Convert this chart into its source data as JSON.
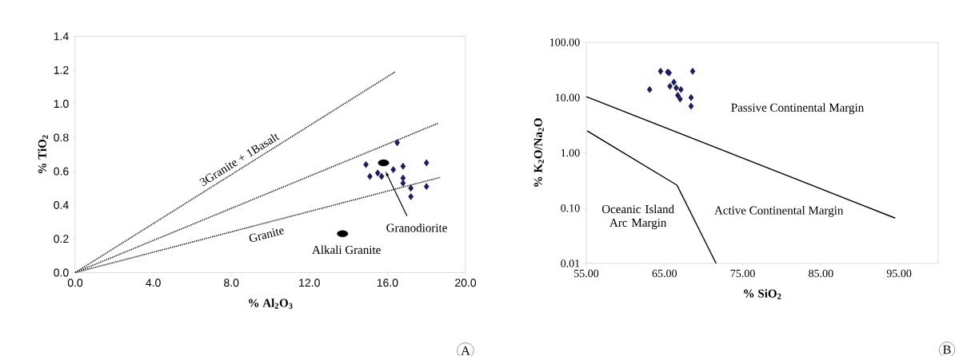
{
  "chart_data": [
    {
      "type": "scatter",
      "xlabel": "% Al$_{2}$O$_{3}$",
      "ylabel": "% TiO$_{2}$",
      "xlim": [
        0,
        20
      ],
      "ylim": [
        0,
        1.4
      ],
      "xticks": [
        {
          "value": 0,
          "label": "0.0"
        },
        {
          "value": 4,
          "label": "4.0"
        },
        {
          "value": 8,
          "label": "8.0"
        },
        {
          "value": 12,
          "label": "12.0"
        },
        {
          "value": 16,
          "label": "16.0"
        },
        {
          "value": 20,
          "label": "20.0"
        }
      ],
      "yticks": [
        {
          "value": 0,
          "label": "0.0"
        },
        {
          "value": 0.2,
          "label": "0.2"
        },
        {
          "value": 0.4,
          "label": "0.4"
        },
        {
          "value": 0.6,
          "label": "0.6"
        },
        {
          "value": 0.8,
          "label": "0.8"
        },
        {
          "value": 1.0,
          "label": "1.0"
        },
        {
          "value": 1.2,
          "label": "1.2"
        },
        {
          "value": 1.4,
          "label": "1.4"
        }
      ],
      "series": [
        {
          "type": "scatter",
          "marker": "diamond",
          "color": "#1c1c5c",
          "x": [
            14.9,
            15.1,
            15.5,
            15.7,
            16.3,
            16.5,
            16.8,
            16.8,
            16.8,
            17.2,
            17.2,
            18.0,
            18.0
          ],
          "values": [
            0.64,
            0.57,
            0.59,
            0.57,
            0.61,
            0.77,
            0.63,
            0.56,
            0.53,
            0.5,
            0.45,
            0.65,
            0.51
          ]
        },
        {
          "type": "scatter",
          "marker": "circle",
          "color": "#000000",
          "x": [
            15.8,
            13.7
          ],
          "values": [
            0.65,
            0.23
          ]
        },
        {
          "type": "line",
          "line_style": "dotted",
          "marker": "none",
          "color": "#333333",
          "x": [
            0,
            16.4
          ],
          "values": [
            0,
            1.19
          ]
        },
        {
          "type": "line",
          "line_style": "dotted",
          "marker": "none",
          "color": "#333333",
          "x": [
            0,
            18.6
          ],
          "values": [
            0,
            0.885
          ]
        },
        {
          "type": "line",
          "line_style": "dotted",
          "marker": "none",
          "color": "#333333",
          "x": [
            0,
            18.7
          ],
          "values": [
            0,
            0.564
          ]
        }
      ],
      "annotations": [
        "3Granite + 1Basalt",
        "Granite",
        {
          "text": "Granodiorite",
          "x": 15.9,
          "y": 0.6
        },
        "Alkali Granite",
        "A"
      ]
    },
    {
      "type": "scatter",
      "xlabel": "% SiO$_{2}$",
      "ylabel": "% K$_{2}$O/Na$_{2}$O",
      "log": "y",
      "xlim": [
        55,
        100
      ],
      "ylim": [
        0.01,
        100
      ],
      "xticks": [
        {
          "value": 55,
          "label": "55.00"
        },
        {
          "value": 65,
          "label": "65.00"
        },
        {
          "value": 75,
          "label": "75.00"
        },
        {
          "value": 85,
          "label": "85.00"
        },
        {
          "value": 95,
          "label": "95.00"
        }
      ],
      "yticks": [
        {
          "value": 0.01,
          "label": "0.01"
        },
        {
          "value": 0.1,
          "label": "0.10"
        },
        {
          "value": 1,
          "label": "1.00"
        },
        {
          "value": 10,
          "label": "10.00"
        },
        {
          "value": 100,
          "label": "100.00"
        }
      ],
      "series": [
        {
          "type": "scatter",
          "marker": "diamond",
          "color": "#1c1c5c",
          "x": [
            63.1,
            64.5,
            65.4,
            65.6,
            68.6,
            65.7,
            66.2,
            66.5,
            66.7,
            67.1,
            67.0,
            68.4,
            68.4
          ],
          "values": [
            14,
            30,
            29,
            28,
            30,
            16,
            19,
            15,
            11,
            14,
            9.4,
            10,
            7
          ]
        },
        {
          "type": "line",
          "line_style": "solid",
          "marker": "none",
          "color": "#000000",
          "x": [
            55,
            94.5
          ],
          "values": [
            10.4,
            0.066
          ]
        },
        {
          "type": "line",
          "line_style": "solid",
          "marker": "none",
          "color": "#000000",
          "x": [
            55.1,
            66.6,
            71.6
          ],
          "values": [
            2.5,
            0.26,
            0.01
          ]
        }
      ],
      "annotations": [
        "Passive Continental Margin",
        "Active Continental Margin",
        "Oceanic Island Arc Margin",
        "B"
      ]
    }
  ]
}
